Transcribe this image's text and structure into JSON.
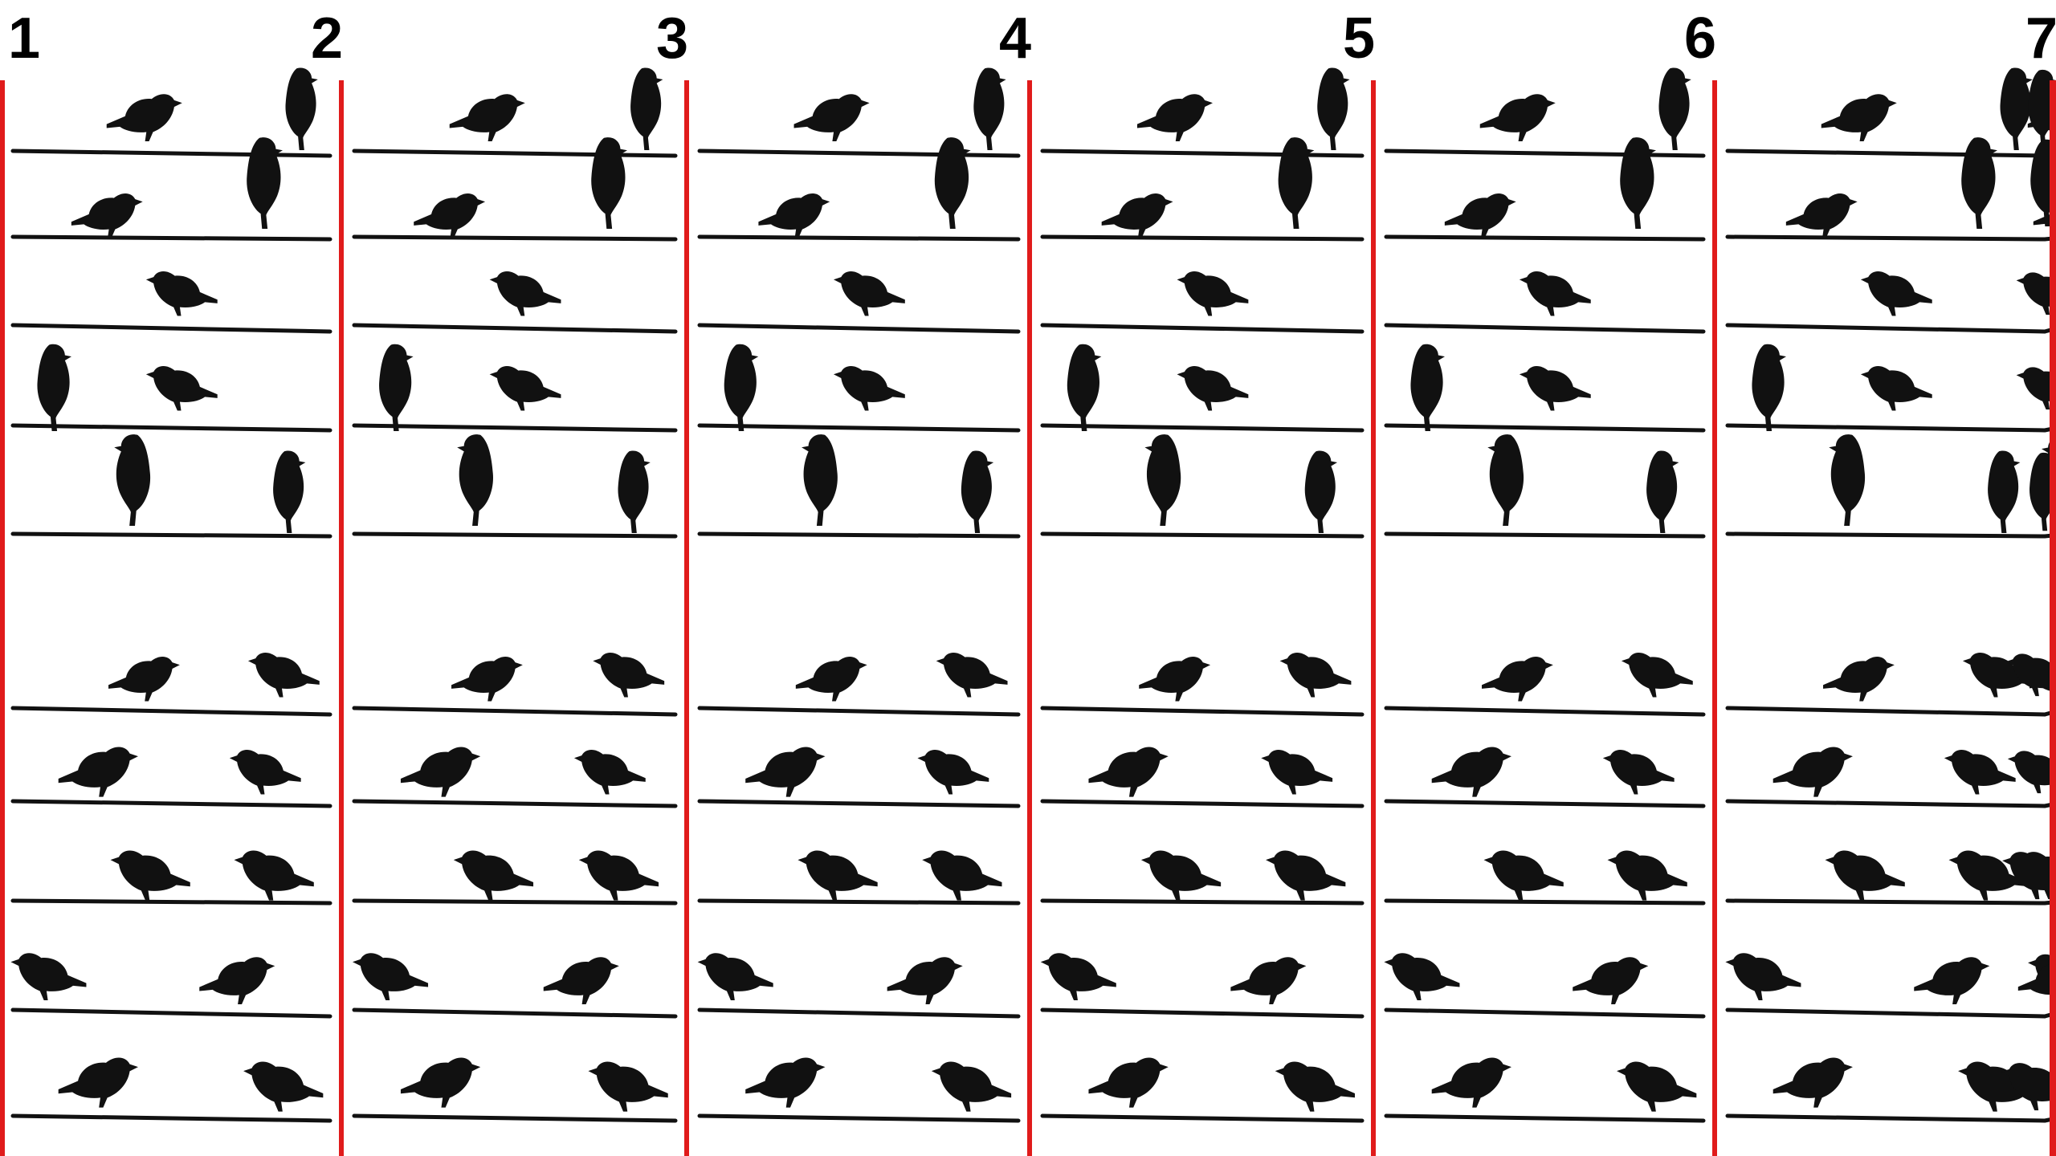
{
  "puzzle": {
    "columns": [
      {
        "number": "1"
      },
      {
        "number": "2"
      },
      {
        "number": "3"
      },
      {
        "number": "4"
      },
      {
        "number": "5"
      },
      {
        "number": "6"
      },
      {
        "number": "7"
      }
    ]
  },
  "colors": {
    "divider": "#e01b1b",
    "ink": "#111111",
    "background": "#ffffff"
  },
  "icons": {
    "bird": "bird-silhouette-icon",
    "wire": "wire-line"
  }
}
